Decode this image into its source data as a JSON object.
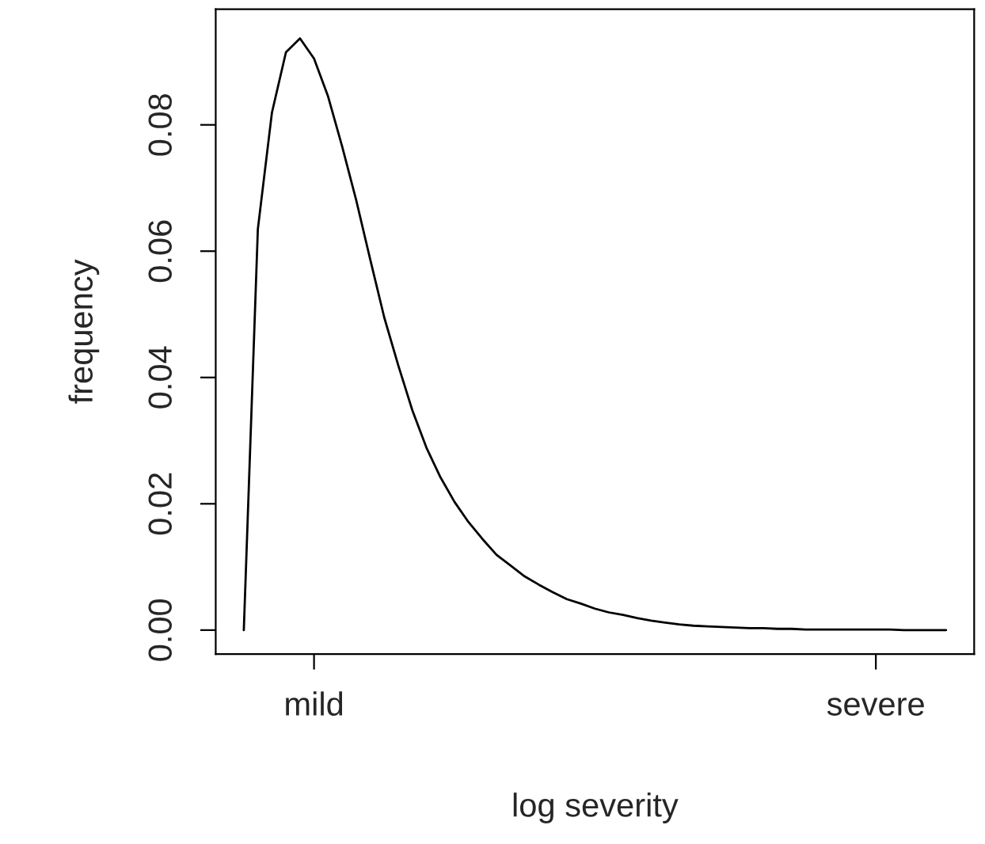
{
  "chart_data": {
    "type": "line",
    "xlabel": "log severity",
    "ylabel": "frequency",
    "categories": [
      null,
      null,
      null,
      null,
      null,
      "mild",
      null,
      null,
      null,
      null,
      null,
      null,
      null,
      null,
      null,
      null,
      null,
      null,
      null,
      null,
      null,
      null,
      null,
      null,
      null,
      null,
      null,
      null,
      null,
      null,
      null,
      null,
      null,
      null,
      null,
      null,
      null,
      null,
      null,
      null,
      null,
      null,
      null,
      null,
      null,
      "severe",
      null,
      null,
      null,
      null,
      null
    ],
    "series": [
      {
        "color": "#000000",
        "values": [
          0,
          0.0635,
          0.0819,
          0.0915,
          0.0937,
          0.0905,
          0.0845,
          0.0766,
          0.0681,
          0.0587,
          0.0495,
          0.0419,
          0.0348,
          0.0289,
          0.0242,
          0.0203,
          0.0171,
          0.0144,
          0.0119,
          0.0102,
          0.0085,
          0.0072,
          0.006,
          0.0049,
          0.0042,
          0.0034,
          0.0028,
          0.0024,
          0.0019,
          0.0015,
          0.0012,
          0.0009,
          0.0007,
          0.0006,
          0.0005,
          0.0004,
          0.0003,
          0.0003,
          0.0002,
          0.0002,
          0.0001,
          0.0001,
          0.0001,
          0.0001,
          0.0001,
          0.0001,
          0.0001,
          0,
          0,
          0,
          0
        ]
      }
    ],
    "ylim": [
      -0.0038,
      0.0983
    ],
    "yticks": [
      {
        "value": 0,
        "label": "0.00"
      },
      {
        "value": 0.02,
        "label": "0.02"
      },
      {
        "value": 0.04,
        "label": "0.04"
      },
      {
        "value": 0.06,
        "label": "0.06"
      },
      {
        "value": 0.08,
        "label": "0.08"
      }
    ],
    "grid": false,
    "legend": false,
    "marker": "none",
    "line_style": "solid"
  }
}
